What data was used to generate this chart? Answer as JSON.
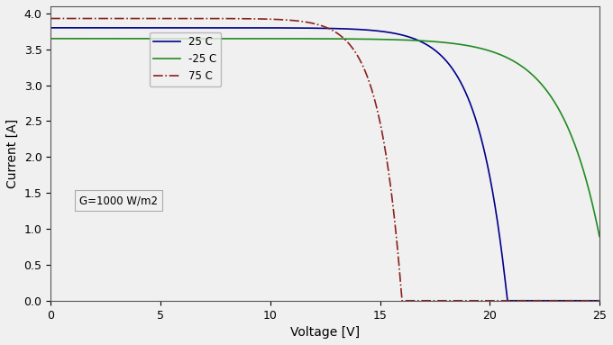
{
  "title": "",
  "xlabel": "Voltage [V]",
  "ylabel": "Current [A]",
  "xlim": [
    0,
    25
  ],
  "ylim": [
    0,
    4.1
  ],
  "xticks": [
    0,
    5,
    10,
    15,
    20,
    25
  ],
  "yticks": [
    0,
    0.5,
    1.0,
    1.5,
    2.0,
    2.5,
    3.0,
    3.5,
    4.0
  ],
  "annotation": "G=1000 W/m2",
  "curves": [
    {
      "label": "25 C",
      "color": "#00008b",
      "linestyle": "solid",
      "linewidth": 1.2,
      "Isc": 3.8,
      "Voc": 20.8,
      "knee_v": 17.5,
      "alpha": 3.5
    },
    {
      "label": "-25 C",
      "color": "#228b22",
      "linestyle": "solid",
      "linewidth": 1.2,
      "Isc": 3.65,
      "Voc": 25.5,
      "knee_v": 21.0,
      "alpha": 3.5
    },
    {
      "label": "75 C",
      "color": "#8b2020",
      "linestyle": "dashdot",
      "linewidth": 1.2,
      "Isc": 3.93,
      "Voc": 16.0,
      "knee_v": 13.5,
      "alpha": 3.0
    }
  ],
  "background_color": "#f0f0f0",
  "figsize": [
    6.8,
    3.83
  ],
  "dpi": 100
}
